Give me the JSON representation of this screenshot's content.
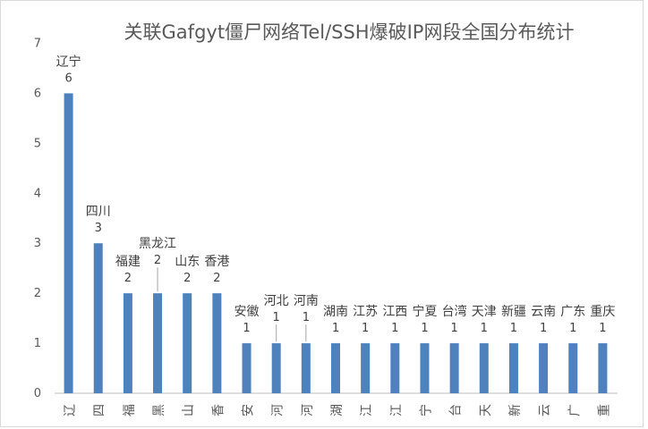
{
  "chart_data": {
    "type": "bar",
    "title": "关联Gafgyt僵尸网络Tel/SSH爆破IP网段全国分布统计",
    "categories": [
      "辽",
      "四",
      "福",
      "黑",
      "山",
      "香",
      "安",
      "河",
      "河",
      "湖",
      "江",
      "江",
      "宁",
      "台",
      "天",
      "新",
      "云",
      "广",
      "重"
    ],
    "data_labels": [
      "辽宁",
      "四川",
      "福建",
      "黑龙江",
      "山东",
      "香港",
      "安徽",
      "河北",
      "河南",
      "湖南",
      "江苏",
      "江西",
      "宁夏",
      "台湾",
      "天津",
      "新疆",
      "云南",
      "广东",
      "重庆"
    ],
    "values": [
      6,
      3,
      2,
      2,
      2,
      2,
      1,
      1,
      1,
      1,
      1,
      1,
      1,
      1,
      1,
      1,
      1,
      1,
      1
    ],
    "ylim": [
      0,
      7
    ],
    "yticks": [
      0,
      1,
      2,
      3,
      4,
      5,
      6,
      7
    ],
    "grid": false,
    "legend": "none",
    "bar_color": "#4f81bd"
  }
}
